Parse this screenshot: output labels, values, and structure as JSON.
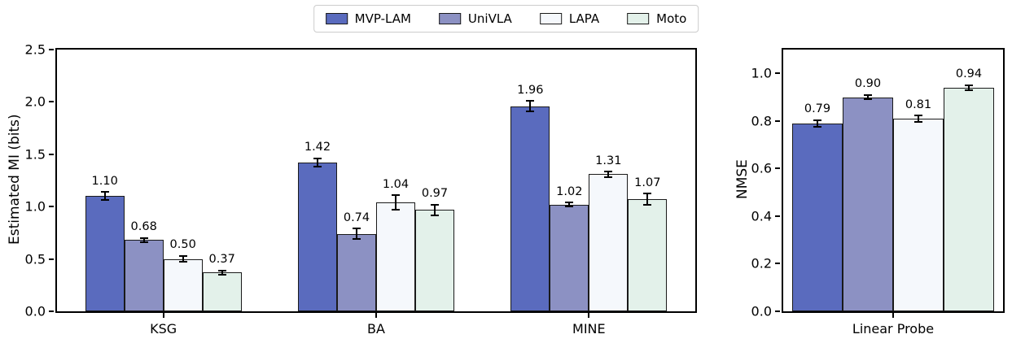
{
  "figure": {
    "background": "#ffffff",
    "legend": {
      "edge_color": "#cccccc",
      "entries": [
        {
          "label": "MVP-LAM",
          "color": "#5A6BBE"
        },
        {
          "label": "UniVLA",
          "color": "#8C91C3"
        },
        {
          "label": "LAPA",
          "color": "#F5F8FC"
        },
        {
          "label": "Moto",
          "color": "#E3F1EA"
        }
      ]
    },
    "bar_edge_color": "#1a1a1a",
    "error_bar_color": "#000000"
  },
  "chart_data": [
    {
      "type": "bar",
      "title": "",
      "xlabel": "",
      "ylabel": "Estimated MI (bits)",
      "categories": [
        "KSG",
        "BA",
        "MINE"
      ],
      "series": [
        {
          "name": "MVP-LAM",
          "color": "#5A6BBE",
          "values": [
            1.1,
            1.42,
            1.96
          ],
          "errors": [
            0.04,
            0.04,
            0.05
          ]
        },
        {
          "name": "UniVLA",
          "color": "#8C91C3",
          "values": [
            0.68,
            0.74,
            1.02
          ],
          "errors": [
            0.02,
            0.05,
            0.02
          ]
        },
        {
          "name": "LAPA",
          "color": "#F5F8FC",
          "values": [
            0.5,
            1.04,
            1.31
          ],
          "errors": [
            0.03,
            0.07,
            0.025
          ]
        },
        {
          "name": "Moto",
          "color": "#E3F1EA",
          "values": [
            0.37,
            0.97,
            1.07
          ],
          "errors": [
            0.02,
            0.05,
            0.055
          ]
        }
      ],
      "ylim": [
        0,
        2.5
      ],
      "yticks": [
        0.0,
        0.5,
        1.0,
        1.5,
        2.0,
        2.5
      ],
      "grid": false,
      "value_label_format": "2-decimals",
      "legend_position": "top-center-figure"
    },
    {
      "type": "bar",
      "title": "",
      "xlabel": "",
      "ylabel": "NMSE",
      "categories": [
        "Linear Probe"
      ],
      "series": [
        {
          "name": "MVP-LAM",
          "color": "#5A6BBE",
          "values": [
            0.79
          ],
          "errors": [
            0.013
          ]
        },
        {
          "name": "UniVLA",
          "color": "#8C91C3",
          "values": [
            0.9
          ],
          "errors": [
            0.01
          ]
        },
        {
          "name": "LAPA",
          "color": "#F5F8FC",
          "values": [
            0.81
          ],
          "errors": [
            0.013
          ]
        },
        {
          "name": "Moto",
          "color": "#E3F1EA",
          "values": [
            0.94
          ],
          "errors": [
            0.01
          ]
        }
      ],
      "ylim": [
        0,
        1.1
      ],
      "yticks": [
        0.0,
        0.2,
        0.4,
        0.6,
        0.8,
        1.0
      ],
      "grid": false,
      "value_label_format": "2-decimals"
    }
  ]
}
